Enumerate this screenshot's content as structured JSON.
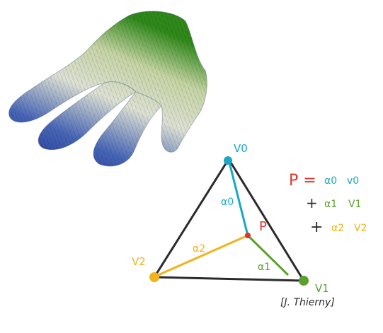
{
  "colors": {
    "v0": "#1aa6c4",
    "v1": "#5aa02c",
    "v2": "#f2b21a",
    "p": "#e0332a",
    "edge": "#2b2b2b",
    "hand_dark": "#1f3a9a",
    "hand_mid": "#dfe3d3",
    "hand_top": "#3a8a1e"
  },
  "image": {
    "subject": "hand-mesh-with-gradient-shading"
  },
  "diagram": {
    "vertex_v0": "V0",
    "vertex_v1": "V1",
    "vertex_v2": "V2",
    "point_p": "P",
    "alpha0": "α0",
    "alpha1": "α1",
    "alpha2": "α2",
    "formula": {
      "lhs": "P =",
      "term0_coef": "α0",
      "term0_vert": "v0",
      "plus1": "+",
      "term1_coef": "α1",
      "term1_vert": "V1",
      "plus2": "+",
      "term2_coef": "α2",
      "term2_vert": "V2"
    }
  },
  "credit": "[J. Thierny]"
}
